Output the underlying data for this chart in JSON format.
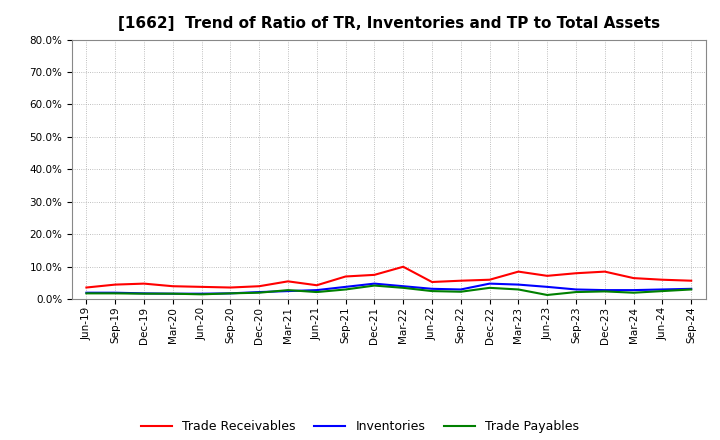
{
  "title": "[1662]  Trend of Ratio of TR, Inventories and TP to Total Assets",
  "x_labels": [
    "Jun-19",
    "Sep-19",
    "Dec-19",
    "Mar-20",
    "Jun-20",
    "Sep-20",
    "Dec-20",
    "Mar-21",
    "Jun-21",
    "Sep-21",
    "Dec-21",
    "Mar-22",
    "Jun-22",
    "Sep-22",
    "Dec-22",
    "Mar-23",
    "Jun-23",
    "Sep-23",
    "Dec-23",
    "Mar-24",
    "Jun-24",
    "Sep-24"
  ],
  "trade_receivables": [
    0.036,
    0.045,
    0.048,
    0.04,
    0.038,
    0.036,
    0.04,
    0.055,
    0.043,
    0.07,
    0.075,
    0.1,
    0.053,
    0.057,
    0.06,
    0.085,
    0.072,
    0.08,
    0.085,
    0.065,
    0.06,
    0.057
  ],
  "inventories": [
    0.02,
    0.02,
    0.018,
    0.017,
    0.017,
    0.018,
    0.022,
    0.025,
    0.028,
    0.038,
    0.048,
    0.04,
    0.032,
    0.03,
    0.048,
    0.045,
    0.038,
    0.03,
    0.028,
    0.028,
    0.03,
    0.032
  ],
  "trade_payables": [
    0.018,
    0.018,
    0.017,
    0.017,
    0.015,
    0.018,
    0.02,
    0.028,
    0.022,
    0.03,
    0.042,
    0.035,
    0.025,
    0.023,
    0.035,
    0.03,
    0.013,
    0.022,
    0.024,
    0.02,
    0.025,
    0.03
  ],
  "tr_color": "#FF0000",
  "inv_color": "#0000FF",
  "tp_color": "#008000",
  "ylim": [
    0.0,
    0.8
  ],
  "yticks": [
    0.0,
    0.1,
    0.2,
    0.3,
    0.4,
    0.5,
    0.6,
    0.7,
    0.8
  ],
  "fig_bg_color": "#FFFFFF",
  "plot_bg_color": "#FFFFFF",
  "grid_color": "#AAAAAA",
  "legend_labels": [
    "Trade Receivables",
    "Inventories",
    "Trade Payables"
  ],
  "title_fontsize": 11,
  "tick_fontsize": 7.5,
  "legend_fontsize": 9
}
